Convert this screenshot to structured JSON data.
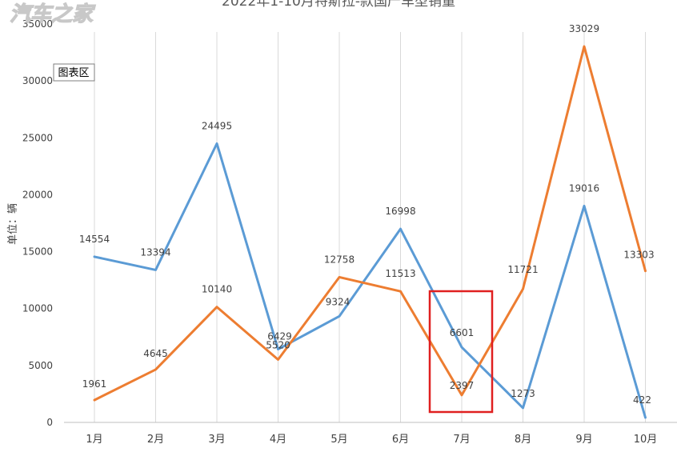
{
  "watermark": "汽车之家",
  "tooltip": "图表区",
  "chart_data": {
    "type": "line",
    "title": "2022年1-10月特斯拉-款国产车型销量",
    "ylabel": "单位：辆",
    "xlabel": "",
    "categories": [
      "1月",
      "2月",
      "3月",
      "4月",
      "5月",
      "6月",
      "7月",
      "8月",
      "9月",
      "10月"
    ],
    "ylim": [
      0,
      35000
    ],
    "yticks": [
      0,
      5000,
      10000,
      15000,
      20000,
      25000,
      30000,
      35000
    ],
    "grid": "vertical",
    "highlight_category": "7月",
    "highlight_color": "#e02020",
    "series": [
      {
        "color": "#5b9bd5",
        "values": [
          14554,
          13394,
          24495,
          6429,
          9324,
          16998,
          6601,
          1273,
          19016,
          422
        ]
      },
      {
        "color": "#ed7d31",
        "values": [
          1961,
          4645,
          10140,
          5520,
          12758,
          11513,
          2397,
          11721,
          33029,
          13303
        ]
      }
    ]
  }
}
